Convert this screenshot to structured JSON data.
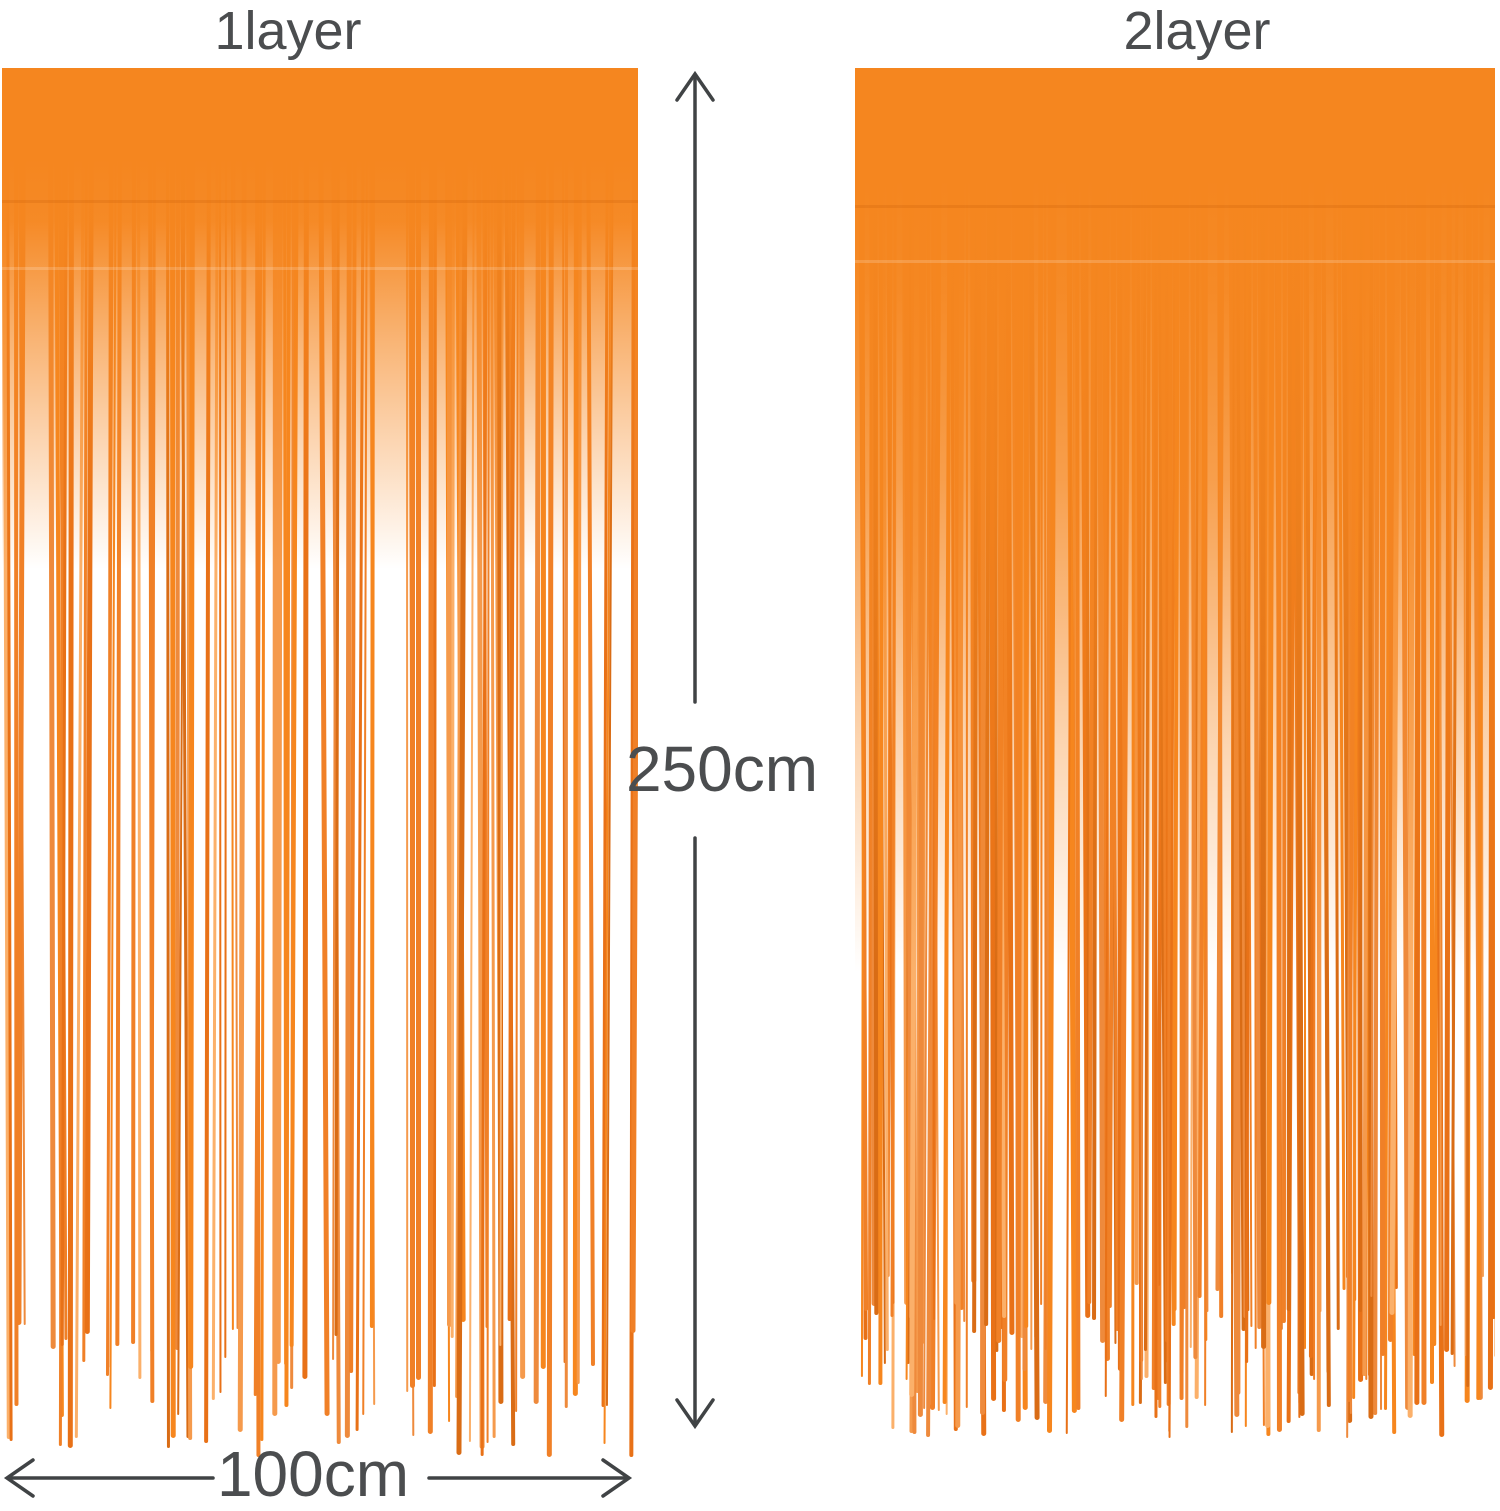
{
  "image_type": "product-dimension-photo",
  "background": "#ffffff",
  "labels": {
    "left_curtain": "1layer",
    "right_curtain": "2layer"
  },
  "dimensions": {
    "height": "250cm",
    "width": "100cm"
  },
  "colors": {
    "annotation_text": "#4b4d4f",
    "arrow": "#404345",
    "curtain_base": "#f5861f",
    "strand_palette": [
      "#f08027",
      "#ee8a3c",
      "#e87117",
      "#f59a4c",
      "#fbb06a",
      "#d96c15",
      "#f6861e"
    ]
  },
  "curtains": [
    {
      "name": "left-curtain",
      "label": "1layer",
      "layers": 1
    },
    {
      "name": "right-curtain",
      "label": "2layer",
      "layers": 2
    }
  ]
}
